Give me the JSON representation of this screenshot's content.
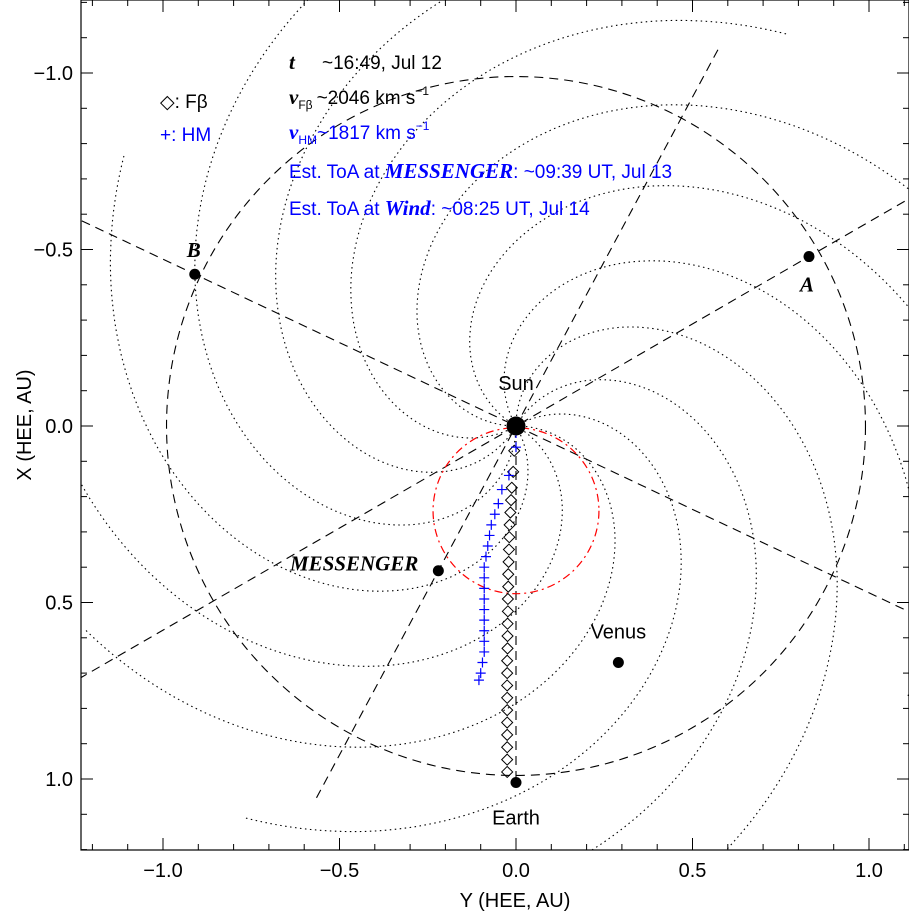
{
  "chart_data": {
    "type": "scatter",
    "xlabel": "Y (HEE, AU)",
    "ylabel": "X (HEE, AU)",
    "xlim": [
      -1.2,
      1.15
    ],
    "ylim": [
      -1.2,
      1.2
    ],
    "y_inverted": true,
    "x_ticks": [
      -1.0,
      -0.5,
      0.0,
      0.5,
      1.0
    ],
    "x_tick_labels": [
      "−1.0",
      "−0.5",
      "0.0",
      "0.5",
      "1.0"
    ],
    "y_ticks": [
      -1.0,
      -0.5,
      0.0,
      0.5,
      1.0
    ],
    "y_tick_labels": [
      "−1.0",
      "−0.5",
      "0.0",
      "0.5",
      "1.0"
    ],
    "objects": [
      {
        "name": "Sun",
        "label": "Sun",
        "y": 0.0,
        "x": 0.0,
        "size": "large"
      },
      {
        "name": "Earth",
        "label": "Earth",
        "y": 0.0,
        "x": 1.01
      },
      {
        "name": "Venus",
        "label": "Venus",
        "y": 0.29,
        "x": 0.67
      },
      {
        "name": "MESSENGER",
        "label": "MESSENGER",
        "y": -0.22,
        "x": 0.41
      },
      {
        "name": "A",
        "label": "A",
        "y": 0.83,
        "x": -0.48
      },
      {
        "name": "B",
        "label": "B",
        "y": -0.91,
        "x": -0.43
      }
    ],
    "series": [
      {
        "name": "Fβ",
        "marker": "diamond",
        "color": "#000000",
        "points": [
          {
            "y": -0.005,
            "x": 0.07
          },
          {
            "y": -0.008,
            "x": 0.13
          },
          {
            "y": -0.012,
            "x": 0.175
          },
          {
            "y": -0.014,
            "x": 0.21
          },
          {
            "y": -0.016,
            "x": 0.245
          },
          {
            "y": -0.018,
            "x": 0.28
          },
          {
            "y": -0.019,
            "x": 0.315
          },
          {
            "y": -0.02,
            "x": 0.35
          },
          {
            "y": -0.021,
            "x": 0.385
          },
          {
            "y": -0.022,
            "x": 0.42
          },
          {
            "y": -0.022,
            "x": 0.455
          },
          {
            "y": -0.023,
            "x": 0.49
          },
          {
            "y": -0.023,
            "x": 0.525
          },
          {
            "y": -0.024,
            "x": 0.56
          },
          {
            "y": -0.024,
            "x": 0.595
          },
          {
            "y": -0.024,
            "x": 0.63
          },
          {
            "y": -0.025,
            "x": 0.665
          },
          {
            "y": -0.025,
            "x": 0.7
          },
          {
            "y": -0.025,
            "x": 0.735
          },
          {
            "y": -0.025,
            "x": 0.77
          },
          {
            "y": -0.025,
            "x": 0.805
          },
          {
            "y": -0.025,
            "x": 0.84
          },
          {
            "y": -0.025,
            "x": 0.875
          },
          {
            "y": -0.025,
            "x": 0.91
          },
          {
            "y": -0.025,
            "x": 0.945
          },
          {
            "y": -0.025,
            "x": 0.98
          }
        ]
      },
      {
        "name": "HM",
        "marker": "plus",
        "color": "#0000ff",
        "points": [
          {
            "y": 0.0,
            "x": 0.02
          },
          {
            "y": 0.0,
            "x": 0.06
          },
          {
            "y": -0.02,
            "x": 0.14
          },
          {
            "y": -0.04,
            "x": 0.18
          },
          {
            "y": -0.05,
            "x": 0.22
          },
          {
            "y": -0.06,
            "x": 0.25
          },
          {
            "y": -0.07,
            "x": 0.28
          },
          {
            "y": -0.075,
            "x": 0.31
          },
          {
            "y": -0.08,
            "x": 0.34
          },
          {
            "y": -0.085,
            "x": 0.37
          },
          {
            "y": -0.09,
            "x": 0.4
          },
          {
            "y": -0.09,
            "x": 0.43
          },
          {
            "y": -0.09,
            "x": 0.46
          },
          {
            "y": -0.09,
            "x": 0.49
          },
          {
            "y": -0.09,
            "x": 0.52
          },
          {
            "y": -0.09,
            "x": 0.55
          },
          {
            "y": -0.09,
            "x": 0.58
          },
          {
            "y": -0.09,
            "x": 0.61
          },
          {
            "y": -0.09,
            "x": 0.64
          },
          {
            "y": -0.095,
            "x": 0.67
          },
          {
            "y": -0.1,
            "x": 0.7
          },
          {
            "y": -0.105,
            "x": 0.72
          }
        ]
      }
    ],
    "legend": [
      {
        "symbol": "◇",
        "text": ": Fβ",
        "color": "#000000"
      },
      {
        "symbol": "+",
        "text": ": HM",
        "color": "#0000ff"
      }
    ],
    "annotations": {
      "t_label": "t",
      "t_value": "~16:49, Jul 12",
      "v_fb_label": "v",
      "v_fb_sub": "Fβ",
      "v_fb_value": "~2046 km s",
      "v_fb_exp": "−1",
      "v_hm_label": "v",
      "v_hm_sub": "HM",
      "v_hm_value": "~1817 km s",
      "v_hm_exp": "−1",
      "toa_m_prefix": "Est. ToA at ",
      "toa_m_target": "MESSENGER",
      "toa_m_value": ": ~09:39 UT, Jul 13",
      "toa_w_prefix": "Est. ToA at ",
      "toa_w_target": "Wind",
      "toa_w_value": ": ~08:25 UT, Jul 14"
    },
    "colors": {
      "annotation_blue": "#0000ff",
      "circle_red": "#ff0000",
      "black": "#000000"
    }
  }
}
